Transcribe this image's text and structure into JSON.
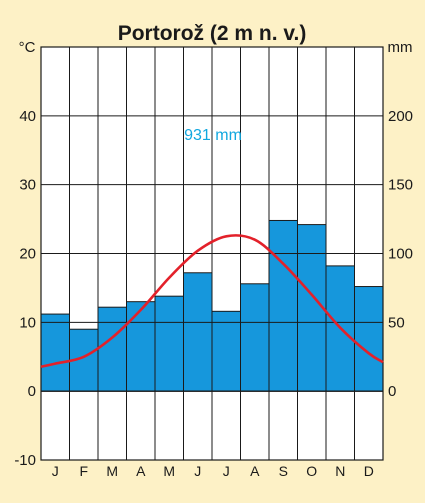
{
  "chart_data": {
    "type": "climate-diagram",
    "title": "Portorož (2 m n. v.)",
    "left_unit": "°C",
    "right_unit": "mm",
    "annotation": "931 mm",
    "categories": [
      "J",
      "F",
      "M",
      "A",
      "M",
      "J",
      "J",
      "A",
      "S",
      "O",
      "N",
      "D"
    ],
    "temperature_axis": {
      "range": [
        -10,
        50
      ],
      "ticks": [
        "-10",
        "0",
        "10",
        "20",
        "30",
        "40"
      ],
      "tick_values": [
        -10,
        0,
        10,
        20,
        30,
        40
      ]
    },
    "precipitation_axis": {
      "range": [
        -50,
        250
      ],
      "ticks": [
        "0",
        "50",
        "100",
        "150",
        "200"
      ],
      "tick_values": [
        0,
        50,
        100,
        150,
        200
      ]
    },
    "series": [
      {
        "type": "bar",
        "unit": "mm",
        "values": [
          56,
          45,
          61,
          65,
          69,
          86,
          58,
          78,
          124,
          121,
          91,
          76
        ]
      },
      {
        "type": "line",
        "unit": "°C",
        "values": [
          4.0,
          5.0,
          7.8,
          11.8,
          16.5,
          20.4,
          22.5,
          22.0,
          18.5,
          14.0,
          9.2,
          5.5
        ]
      }
    ],
    "colors": {
      "bars": "#1697dc",
      "line": "#e3212a",
      "annotation": "#11a7df",
      "background": "#fdf1c6",
      "plot": "#ffffff"
    }
  }
}
